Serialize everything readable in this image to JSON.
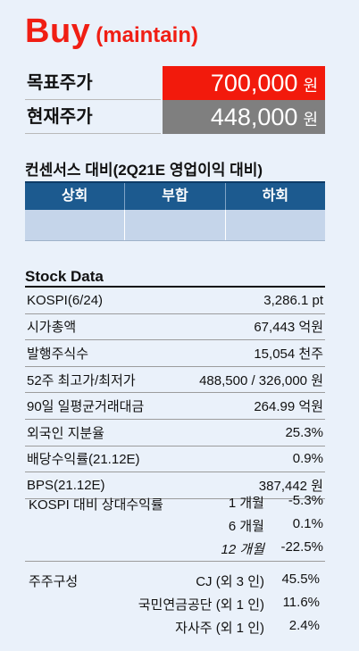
{
  "rating": {
    "label": "Buy",
    "note": "(maintain)"
  },
  "prices": {
    "target": {
      "label": "목표주가",
      "value": "700,000",
      "unit": "원"
    },
    "current": {
      "label": "현재주가",
      "value": "448,000",
      "unit": "원"
    }
  },
  "consensus": {
    "title": "컨센서스 대비(2Q21E 영업이익 대비)",
    "headers": [
      "상회",
      "부합",
      "하회"
    ]
  },
  "stock_data": {
    "title": "Stock Data",
    "rows": [
      {
        "label": "KOSPI(6/24)",
        "value": "3,286.1 pt"
      },
      {
        "label": "시가총액",
        "value": "67,443 억원"
      },
      {
        "label": "발행주식수",
        "value": "15,054 천주"
      },
      {
        "label": "52주 최고가/최저가",
        "value": "488,500 / 326,000 원"
      },
      {
        "label": "90일 일평균거래대금",
        "value": "264.99 억원"
      },
      {
        "label": "외국인 지분율",
        "value": "25.3%"
      },
      {
        "label": "배당수익률(21.12E)",
        "value": "0.9%"
      },
      {
        "label": "BPS(21.12E)",
        "value": "387,442 원"
      }
    ],
    "relative": {
      "title": "KOSPI 대비 상대수익률",
      "rows": [
        {
          "period": "1 개월",
          "value": "-5.3%"
        },
        {
          "period": "6 개월",
          "value": "0.1%"
        },
        {
          "period": "12 개월",
          "value": "-22.5%"
        }
      ]
    },
    "shareholders": {
      "title": "주주구성",
      "rows": [
        {
          "name": "CJ (외 3 인)",
          "value": "45.5%"
        },
        {
          "name": "국민연금공단 (외 1 인)",
          "value": "11.6%"
        },
        {
          "name": "자사주 (외 1 인)",
          "value": "2.4%"
        }
      ]
    }
  }
}
